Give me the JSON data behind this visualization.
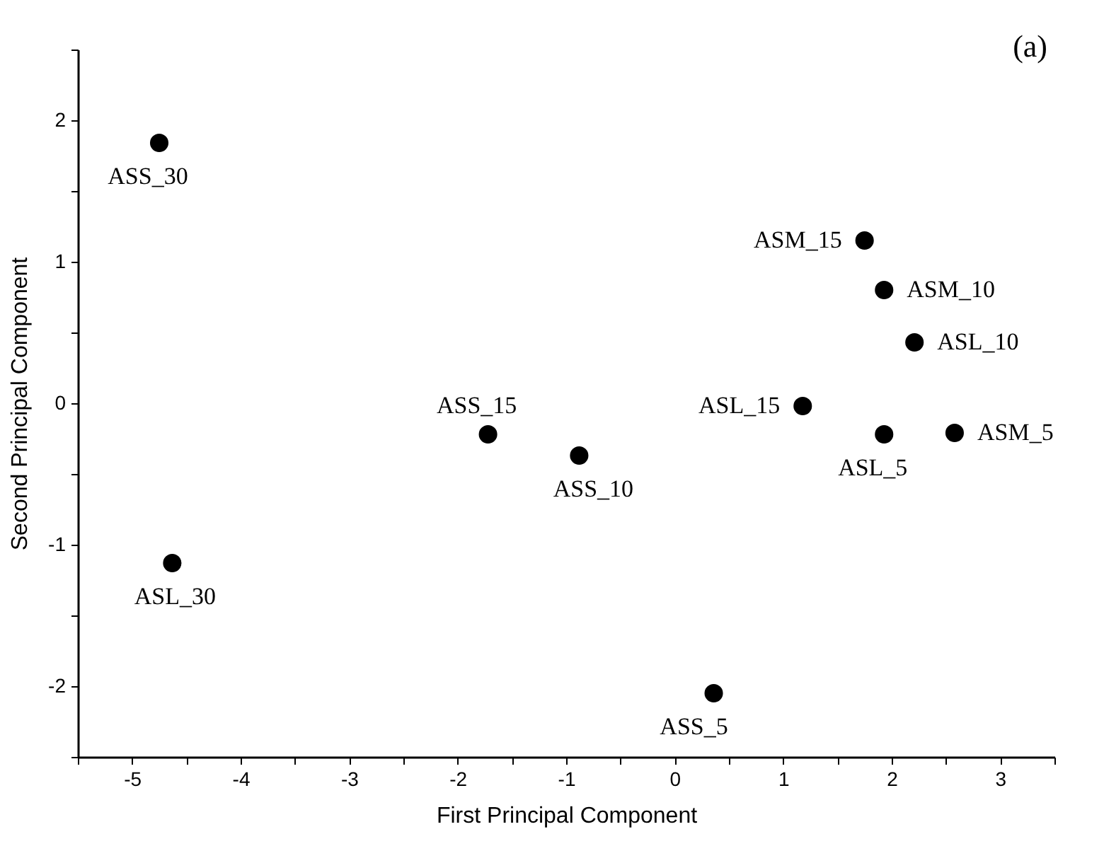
{
  "chart_data": {
    "type": "scatter",
    "xlabel": "First Principal Component",
    "ylabel": "Second Principal Component",
    "x": [
      -4.75,
      -4.63,
      -1.72,
      -0.88,
      0.36,
      1.18,
      1.75,
      1.93,
      2.21,
      1.93,
      2.58
    ],
    "series": [
      {
        "color": "#000000",
        "values": [
          1.84,
          -1.13,
          -0.22,
          -0.37,
          -2.05,
          -0.02,
          1.15,
          0.8,
          0.43,
          -0.22,
          -0.21
        ]
      }
    ],
    "annotations": [
      {
        "text": "ASS_30",
        "x": -4.75,
        "y": 1.84
      },
      {
        "text": "ASL_30",
        "x": -4.63,
        "y": -1.13
      },
      {
        "text": "ASS_15",
        "x": -1.72,
        "y": -0.22
      },
      {
        "text": "ASS_10",
        "x": -0.88,
        "y": -0.37
      },
      {
        "text": "ASS_5",
        "x": 0.36,
        "y": -2.05
      },
      {
        "text": "ASL_15",
        "x": 1.18,
        "y": -0.02
      },
      {
        "text": "ASM_15",
        "x": 1.75,
        "y": 1.15
      },
      {
        "text": "ASM_10",
        "x": 1.93,
        "y": 0.8
      },
      {
        "text": "ASL_10",
        "x": 2.21,
        "y": 0.43
      },
      {
        "text": "ASL_5",
        "x": 1.93,
        "y": -0.22
      },
      {
        "text": "ASM_5",
        "x": 2.58,
        "y": -0.21
      },
      "(a)"
    ],
    "xlim": [
      -5.5,
      3.5
    ],
    "xticks": [
      {
        "value": -5.5,
        "label": null
      },
      -5,
      {
        "value": -4.5,
        "label": null
      },
      -4,
      {
        "value": -3.5,
        "label": null
      },
      -3,
      {
        "value": -2.5,
        "label": null
      },
      -2,
      {
        "value": -1.5,
        "label": null
      },
      -1,
      {
        "value": -0.5,
        "label": null
      },
      0,
      {
        "value": 0.5,
        "label": null
      },
      1,
      {
        "value": 1.5,
        "label": null
      },
      2,
      {
        "value": 2.5,
        "label": null
      },
      3,
      {
        "value": 3.5,
        "label": null
      }
    ],
    "ylim": [
      -2.5,
      2.5
    ],
    "yticks": [
      {
        "value": -2.5,
        "label": null
      },
      -2,
      {
        "value": -1.5,
        "label": null
      },
      -1,
      {
        "value": -0.5,
        "label": null
      },
      0,
      {
        "value": 0.5,
        "label": null
      },
      1,
      {
        "value": 1.5,
        "label": null
      },
      2,
      {
        "value": 2.5,
        "label": null
      }
    ],
    "grid": false,
    "marker": "circle"
  }
}
